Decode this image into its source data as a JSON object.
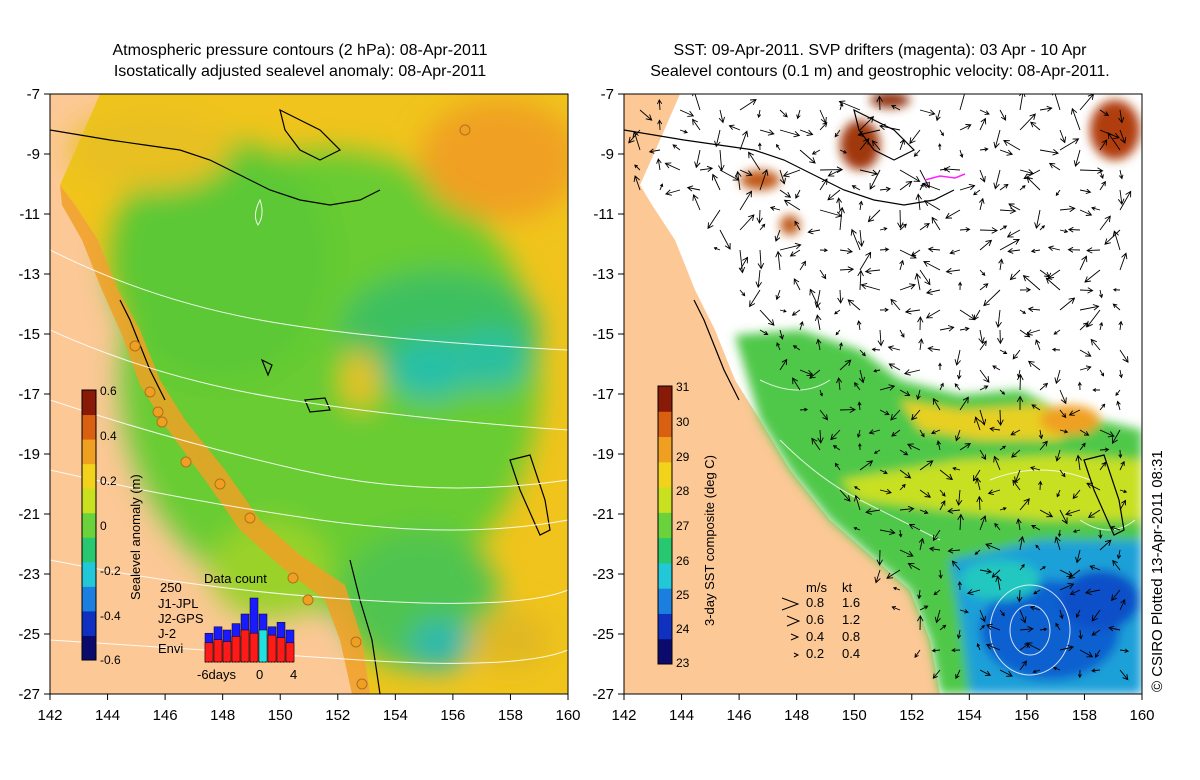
{
  "left_panel": {
    "title_line1": "Atmospheric pressure contours (2 hPa): 08-Apr-2011",
    "title_line2": "Isostatically adjusted sealevel anomaly: 08-Apr-2011",
    "colorbar": {
      "label": "Sealevel anomaly (m)",
      "ticks": [
        "0.6",
        "0.4",
        "0.2",
        "0",
        "-0.2",
        "-0.4",
        "-0.6"
      ],
      "colors": [
        "#0b0b6e",
        "#1030c0",
        "#1b7fe0",
        "#22c8d8",
        "#28c870",
        "#6ad23a",
        "#c8e020",
        "#f2d21a",
        "#f0a020",
        "#d86010",
        "#8a1a08"
      ]
    },
    "data_count": {
      "max_label": "250",
      "title": "Data count",
      "legend": [
        {
          "label": "J1-JPL",
          "color": "#1a1aff"
        },
        {
          "label": "J2-GPS",
          "color": "#ff22ff"
        },
        {
          "label": "J-2",
          "color": "#ff1a1a"
        },
        {
          "label": "Envi",
          "color": "#22e0e0"
        }
      ],
      "x_labels": [
        "-6days",
        "0",
        "4"
      ],
      "bars": [
        {
          "day": -6,
          "j2": 0.3,
          "total": 0.45
        },
        {
          "day": -5,
          "j2": 0.35,
          "total": 0.55
        },
        {
          "day": -4,
          "j2": 0.32,
          "total": 0.5
        },
        {
          "day": -3,
          "j2": 0.4,
          "total": 0.6
        },
        {
          "day": -2,
          "j2": 0.5,
          "total": 0.75
        },
        {
          "day": -1,
          "j2": 0.45,
          "total": 1.0
        },
        {
          "day": 0,
          "j2": 0.5,
          "total": 0.75
        },
        {
          "day": 1,
          "j2": 0.42,
          "total": 0.55
        },
        {
          "day": 2,
          "j2": 0.38,
          "total": 0.62
        },
        {
          "day": 3,
          "j2": 0.3,
          "total": 0.5
        }
      ]
    }
  },
  "right_panel": {
    "title_line1": "SST: 09-Apr-2011. SVP drifters (magenta): 03 Apr - 10 Apr",
    "title_line2": "Sealevel contours (0.1 m) and geostrophic velocity: 08-Apr-2011.",
    "colorbar": {
      "label": "3-day SST composite (deg C)",
      "ticks": [
        "31",
        "30",
        "29",
        "28",
        "27",
        "26",
        "25",
        "24",
        "23"
      ],
      "colors": [
        "#0b0b6e",
        "#1030c0",
        "#1b7fe0",
        "#22c8d8",
        "#28c870",
        "#6ad23a",
        "#c8e020",
        "#f2d21a",
        "#f0a020",
        "#d86010",
        "#8a1a08"
      ]
    },
    "velocity_legend": {
      "header_ms": "m/s",
      "header_kt": "kt",
      "rows": [
        {
          "ms": "0.8",
          "kt": "1.6"
        },
        {
          "ms": "0.6",
          "kt": "1.2"
        },
        {
          "ms": "0.4",
          "kt": "0.8"
        },
        {
          "ms": "0.2",
          "kt": "0.4"
        }
      ]
    },
    "credit": "© CSIRO Plotted 13-Apr-2011 08:31"
  },
  "axes": {
    "x_ticks": [
      "142",
      "144",
      "146",
      "148",
      "150",
      "152",
      "154",
      "156",
      "158",
      "160"
    ],
    "y_ticks": [
      "-7",
      "-9",
      "-11",
      "-13",
      "-15",
      "-17",
      "-19",
      "-21",
      "-23",
      "-25",
      "-27"
    ]
  }
}
